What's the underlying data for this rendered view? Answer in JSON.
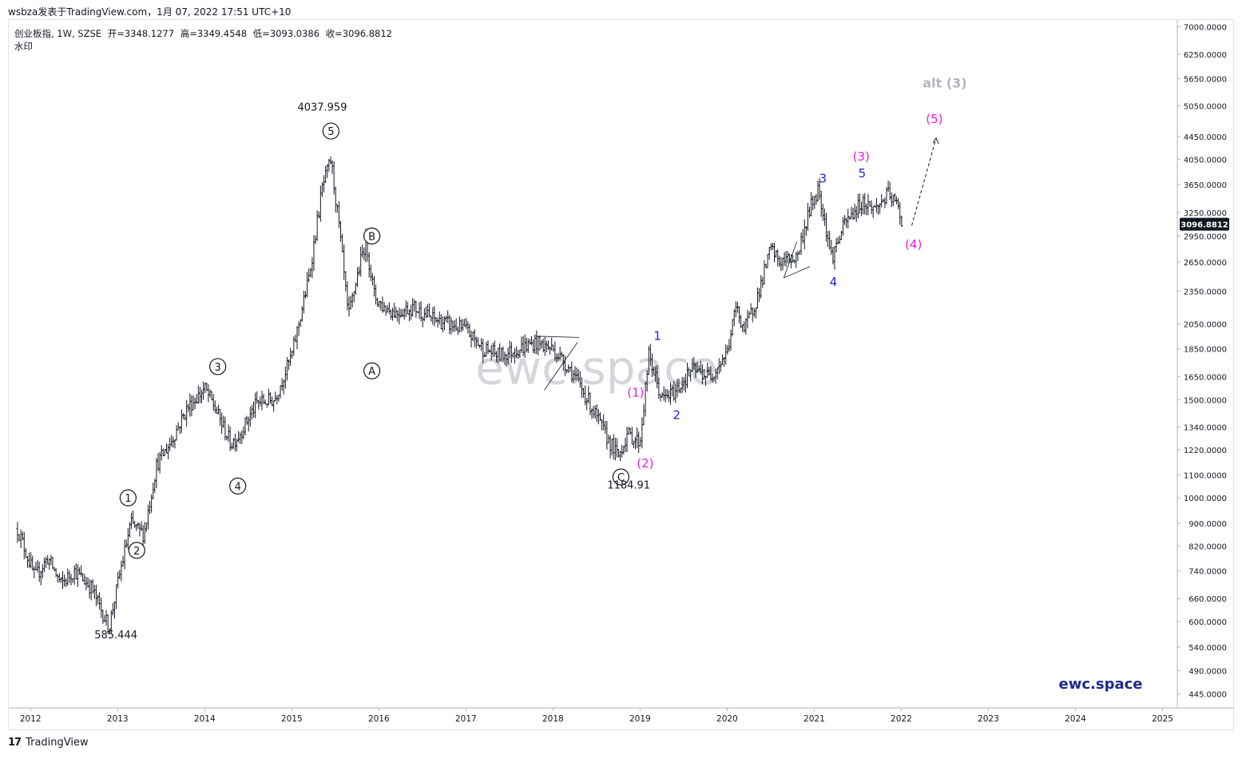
{
  "header": {
    "watermark_line": "wsbza发表于TradingView.com，1月 07, 2022 17:51 UTC+10"
  },
  "legend": {
    "symbol": "创业板指, 1W, SZSE",
    "open": "开=3348.1277",
    "high": "高=3349.4548",
    "low": "低=3093.0386",
    "close": "收=3096.8812",
    "sub": "水印"
  },
  "footer": {
    "brand": "TradingView",
    "logo": "17"
  },
  "chart_data": {
    "type": "line",
    "scale": "log",
    "ylim": [
      420,
      7200
    ],
    "xlim": [
      "2011-10-01",
      "2025-03-01"
    ],
    "price_axis_ticks": [
      "7000.0000",
      "6250.0000",
      "5650.0000",
      "5050.0000",
      "4450.0000",
      "4050.0000",
      "3650.0000",
      "3250.0000",
      "2950.0000",
      "2650.0000",
      "2350.0000",
      "2050.0000",
      "1850.0000",
      "1650.0000",
      "1500.0000",
      "1340.0000",
      "1220.0000",
      "1100.0000",
      "1000.0000",
      "900.0000",
      "820.0000",
      "740.0000",
      "660.0000",
      "600.0000",
      "540.0000",
      "490.0000",
      "445.0000"
    ],
    "price_axis_values": [
      7000,
      6250,
      5650,
      5050,
      4450,
      4050,
      3650,
      3250,
      2950,
      2650,
      2350,
      2050,
      1850,
      1650,
      1500,
      1340,
      1220,
      1100,
      1000,
      900,
      820,
      740,
      660,
      600,
      540,
      490,
      445
    ],
    "time_axis_ticks": [
      "2012",
      "2013",
      "2014",
      "2015",
      "2016",
      "2017",
      "2018",
      "2019",
      "2020",
      "2021",
      "2022",
      "2023",
      "2024",
      "2025"
    ],
    "last_price": "3096.8812",
    "series": [
      {
        "x": [
          2011.85,
          2012.05,
          2012.2,
          2012.35,
          2012.5,
          2012.7,
          2012.9,
          2013.0,
          2013.15,
          2013.3,
          2013.45,
          2013.6,
          2013.8,
          2014.0,
          2014.1,
          2014.3,
          2014.4,
          2014.6,
          2014.8,
          2015.0,
          2015.2,
          2015.35,
          2015.45,
          2015.55,
          2015.65,
          2015.75,
          2015.85,
          2015.95,
          2016.05,
          2016.2,
          2016.4,
          2016.6,
          2016.8,
          2017.0,
          2017.2,
          2017.4,
          2017.6,
          2017.8,
          2018.0,
          2018.2,
          2018.4,
          2018.6,
          2018.75,
          2018.85,
          2019.0,
          2019.1,
          2019.25,
          2019.4,
          2019.6,
          2019.8,
          2020.0,
          2020.1,
          2020.2,
          2020.35,
          2020.5,
          2020.6,
          2020.8,
          2020.95,
          2021.05,
          2021.2,
          2021.35,
          2021.55,
          2021.7,
          2021.85,
          2021.95,
          2022.02
        ],
        "values": [
          880,
          720,
          780,
          700,
          740,
          690,
          585,
          700,
          900,
          860,
          1150,
          1250,
          1450,
          1570,
          1470,
          1250,
          1300,
          1480,
          1500,
          1800,
          2500,
          3600,
          4037.959,
          3000,
          2100,
          2500,
          2900,
          2300,
          2200,
          2150,
          2200,
          2100,
          2050,
          2000,
          1850,
          1800,
          1850,
          1900,
          1850,
          1700,
          1500,
          1300,
          1184.91,
          1300,
          1260,
          1800,
          1500,
          1550,
          1700,
          1650,
          1820,
          2200,
          2000,
          2300,
          2800,
          2650,
          2700,
          3300,
          3600,
          2700,
          3100,
          3400,
          3300,
          3500,
          3350,
          3096.8812
        ]
      }
    ],
    "annotations": {
      "low_label": "585.444",
      "high_label": "4037.959",
      "low2_label": "1184.91",
      "waves_circled": [
        "1",
        "2",
        "3",
        "4",
        "5",
        "A",
        "B",
        "C"
      ],
      "waves_minor": [
        "1",
        "2",
        "3",
        "4",
        "5"
      ],
      "waves_intermediate": [
        "(1)",
        "(2)",
        "(3)",
        "(4)",
        "(5)"
      ],
      "alt_label": "alt (3)",
      "watermark": "ewc.space",
      "brand_mark": "ewc.space"
    },
    "colors": {
      "candles": "#131722",
      "magenta": "#e91ee6",
      "blue": "#1f1fd6",
      "grey": "#b2b5be",
      "last_price_bg": "#131722"
    }
  }
}
